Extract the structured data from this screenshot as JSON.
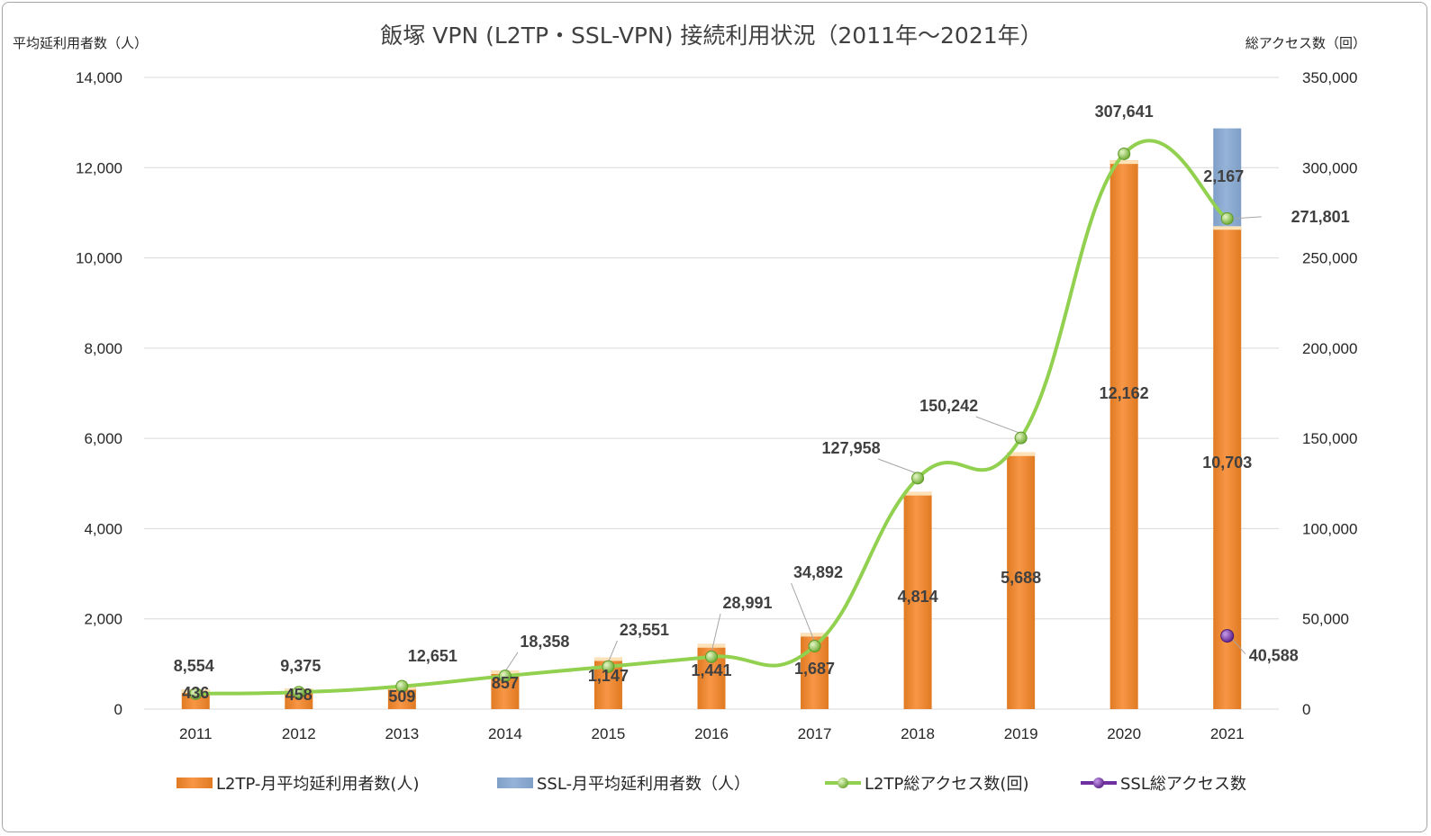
{
  "chart_data": {
    "type": "bar+line",
    "title": "飯塚 VPN (L2TP・SSL-VPN) 接続利用状況（2011年～2021年）",
    "ylabel_left": "平均延利用者数（人）",
    "ylabel_right": "総アクセス数（回）",
    "ylim_left": [
      0,
      14000
    ],
    "ylim_right": [
      0,
      350000
    ],
    "yticks_left": [
      "0",
      "2,000",
      "4,000",
      "6,000",
      "8,000",
      "10,000",
      "12,000",
      "14,000"
    ],
    "yticks_right": [
      "0",
      "50,000",
      "100,000",
      "150,000",
      "200,000",
      "250,000",
      "300,000",
      "350,000"
    ],
    "categories": [
      "2011",
      "2012",
      "2013",
      "2014",
      "2015",
      "2016",
      "2017",
      "2018",
      "2019",
      "2020",
      "2021"
    ],
    "grid": true,
    "legend_position": "bottom",
    "series": [
      {
        "name": "L2TP-月平均延利用者数(人)",
        "kind": "bar",
        "axis": "left",
        "color": "#f79646",
        "values": [
          436,
          458,
          509,
          857,
          1147,
          1441,
          1687,
          4814,
          5688,
          12162,
          10703
        ],
        "labels": [
          "436",
          "458",
          "509",
          "857",
          "1,147",
          "1,441",
          "1,687",
          "4,814",
          "5,688",
          "12,162",
          "10,703"
        ]
      },
      {
        "name": "SSL-月平均延利用者数（人）",
        "kind": "bar-stacked",
        "axis": "left",
        "color": "#95b3d7",
        "values": [
          null,
          null,
          null,
          null,
          null,
          null,
          null,
          null,
          null,
          null,
          2167
        ],
        "labels": [
          "",
          "",
          "",
          "",
          "",
          "",
          "",
          "",
          "",
          "",
          "2,167"
        ]
      },
      {
        "name": "L2TP総アクセス数(回)",
        "kind": "line",
        "axis": "right",
        "color": "#92d050",
        "values": [
          8554,
          9375,
          12651,
          18358,
          23551,
          28991,
          34892,
          127958,
          150242,
          307641,
          271801
        ],
        "labels": [
          "8,554",
          "9,375",
          "12,651",
          "18,358",
          "23,551",
          "28,991",
          "34,892",
          "127,958",
          "150,242",
          "307,641",
          "271,801"
        ]
      },
      {
        "name": "SSL総アクセス数",
        "kind": "point",
        "axis": "right",
        "color": "#7030a0",
        "values": [
          null,
          null,
          null,
          null,
          null,
          null,
          null,
          null,
          null,
          null,
          40588
        ],
        "labels": [
          "",
          "",
          "",
          "",
          "",
          "",
          "",
          "",
          "",
          "",
          "40,588"
        ]
      }
    ]
  }
}
